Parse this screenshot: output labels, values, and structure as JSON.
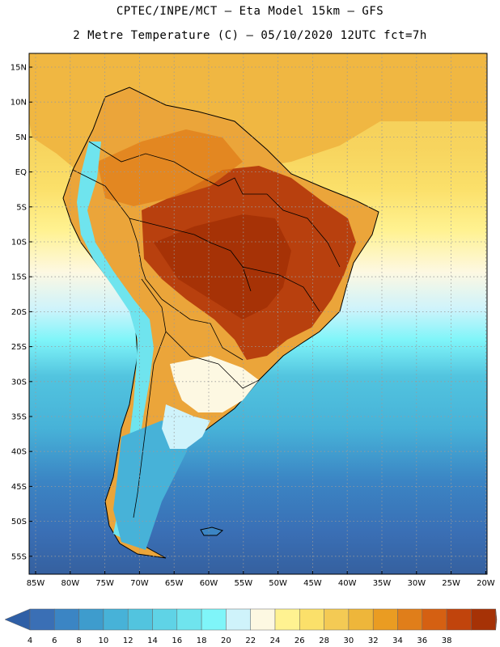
{
  "header": {
    "line1": "CPTEC/INPE/MCT –  Eta Model 15km – GFS",
    "line2": "2 Metre Temperature (C) – 05/10/2020 12UTC fct=7h"
  },
  "map": {
    "lat_labels": [
      "15N",
      "10N",
      "5N",
      "EQ",
      "5S",
      "10S",
      "15S",
      "20S",
      "25S",
      "30S",
      "35S",
      "40S",
      "45S",
      "50S",
      "55S"
    ],
    "lon_labels": [
      "85W",
      "80W",
      "75W",
      "70W",
      "65W",
      "60W",
      "55W",
      "50W",
      "45W",
      "40W",
      "35W",
      "30W",
      "25W",
      "20W"
    ]
  },
  "colorbar": {
    "labels": [
      "4",
      "6",
      "8",
      "10",
      "12",
      "14",
      "16",
      "18",
      "20",
      "22",
      "24",
      "26",
      "28",
      "30",
      "32",
      "34",
      "36",
      "38"
    ],
    "colors": [
      "#3a6fb5",
      "#3b85c4",
      "#3e9ccd",
      "#47b2d8",
      "#52c4df",
      "#5fd3e6",
      "#6fe4ee",
      "#7ff5f9",
      "#cff3fb",
      "#fdf8e2",
      "#fff291",
      "#fbe06a",
      "#f4ca54",
      "#eeb63a",
      "#ea9c22",
      "#e07e1a",
      "#d56012",
      "#c1440c",
      "#a63206"
    ],
    "low_color": "#2f5fa6",
    "high_color": "#9e2e06"
  }
}
